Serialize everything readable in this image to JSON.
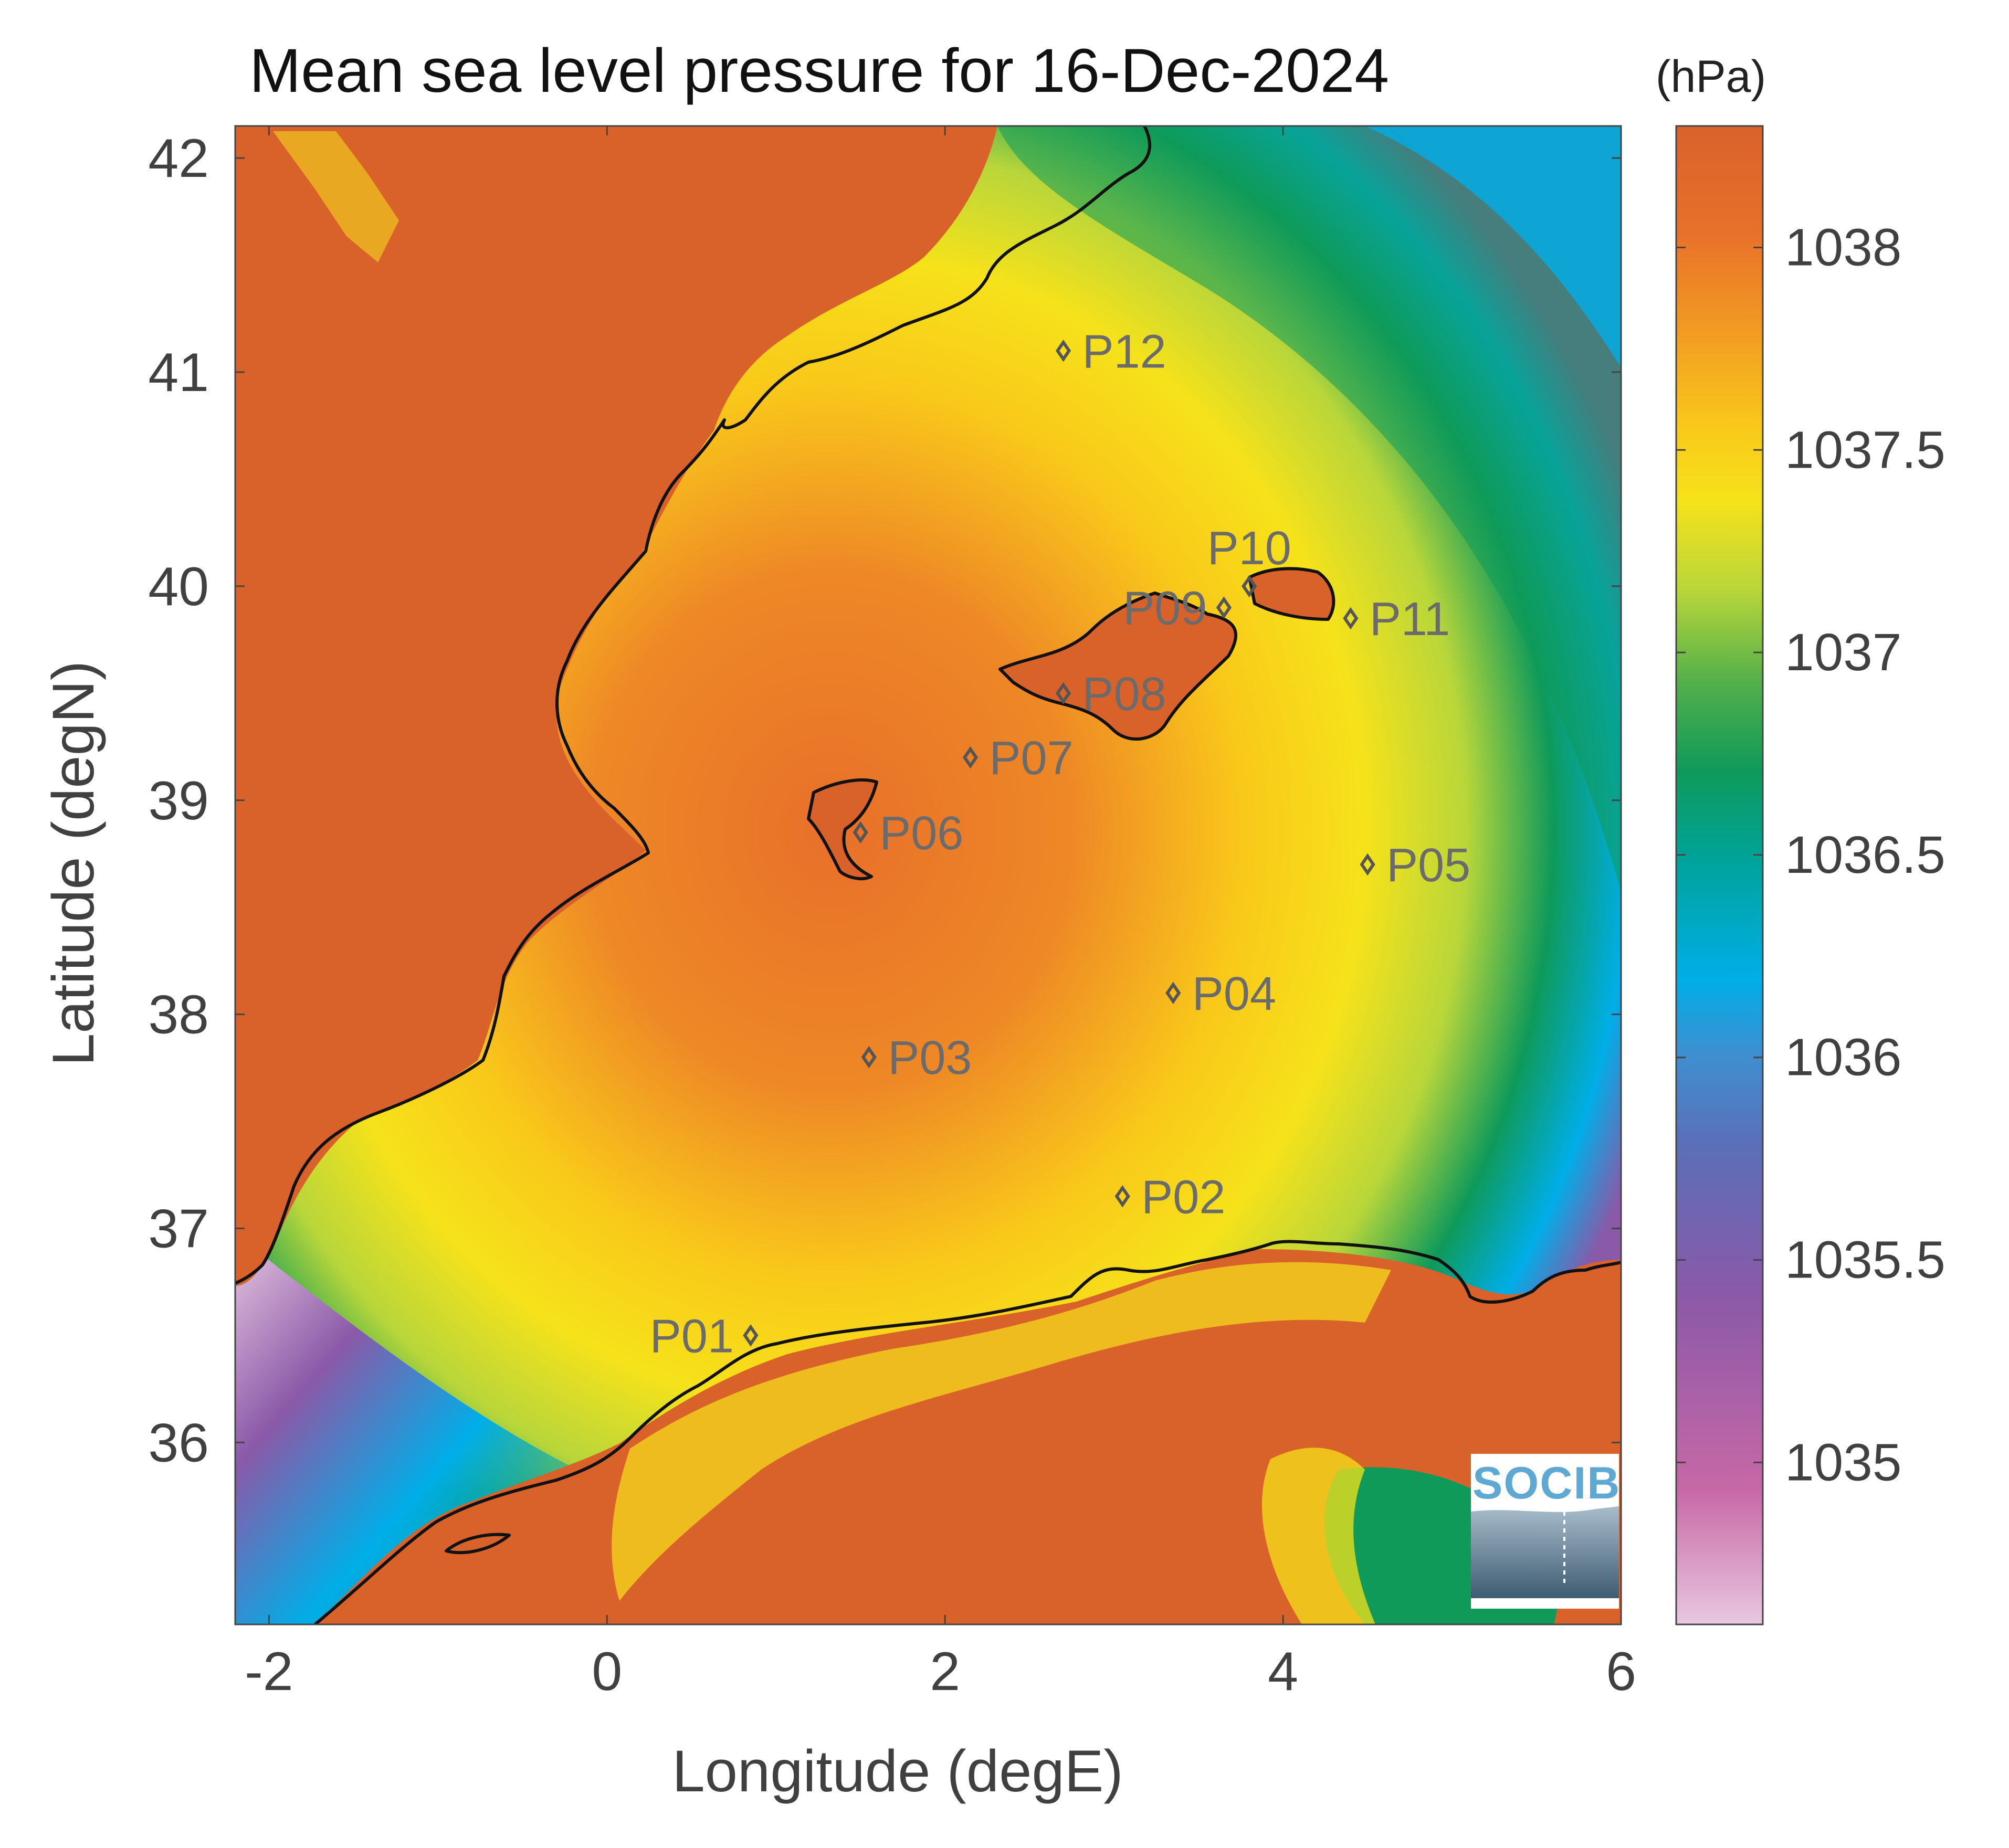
{
  "map": {
    "title": "Mean sea level pressure for 16-Dec-2024",
    "xlabel": "Longitude (degE)",
    "ylabel": "Latitude (degN)",
    "lon_range": [
      -2.2,
      6.0
    ],
    "lat_range": [
      35.15,
      42.15
    ],
    "lon_ticks": [
      "-2",
      "0",
      "2",
      "4",
      "6"
    ],
    "lat_ticks": [
      "36",
      "37",
      "38",
      "39",
      "40",
      "41",
      "42"
    ],
    "colors": {
      "land": "#d9622b",
      "high": "#e8702a",
      "mid": "#f6d81a",
      "low_green": "#0f9a5a",
      "cyan": "#00aee8",
      "purple": "#8a59a8",
      "pink": "#e8c8e0",
      "coast": "#111111"
    }
  },
  "colorbar": {
    "unit": "(hPa)",
    "range": [
      1034.6,
      1038.3
    ],
    "ticks": [
      "1035",
      "1035.5",
      "1036",
      "1036.5",
      "1037",
      "1037.5",
      "1038"
    ],
    "colormap": [
      "#e8c8e0",
      "#c768a6",
      "#8a59a8",
      "#5b6fb8",
      "#3f8fd0",
      "#00aee8",
      "#00a39a",
      "#0f9a5a",
      "#55b04a",
      "#b8d63a",
      "#f6e21a",
      "#f9c81a",
      "#f29d22",
      "#e8702a",
      "#d9622b"
    ]
  },
  "points": [
    {
      "name": "P01",
      "lon": 0.85,
      "lat": 36.5
    },
    {
      "name": "P02",
      "lon": 3.05,
      "lat": 37.15
    },
    {
      "name": "P03",
      "lon": 1.55,
      "lat": 37.8
    },
    {
      "name": "P04",
      "lon": 3.35,
      "lat": 38.1
    },
    {
      "name": "P05",
      "lon": 4.5,
      "lat": 38.7
    },
    {
      "name": "P06",
      "lon": 1.5,
      "lat": 38.85
    },
    {
      "name": "P07",
      "lon": 2.15,
      "lat": 39.2
    },
    {
      "name": "P08",
      "lon": 2.7,
      "lat": 39.5
    },
    {
      "name": "P09",
      "lon": 3.65,
      "lat": 39.9
    },
    {
      "name": "P10",
      "lon": 3.8,
      "lat": 40.0
    },
    {
      "name": "P11",
      "lon": 4.4,
      "lat": 39.85
    },
    {
      "name": "P12",
      "lon": 2.7,
      "lat": 41.1
    }
  ],
  "logo": {
    "text": "SOCIB"
  }
}
